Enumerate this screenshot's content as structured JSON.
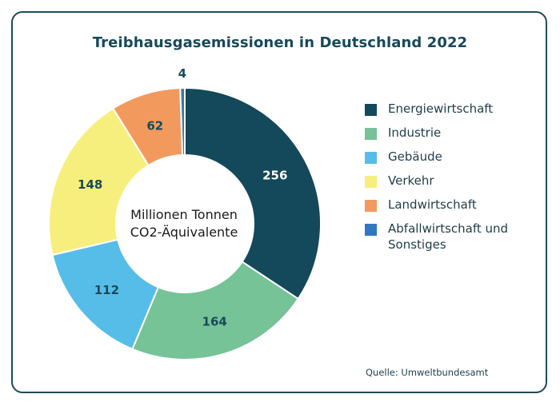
{
  "chart_data": {
    "type": "pie",
    "title": "Treibhausgasemissionen in Deutschland 2022",
    "center_label": [
      "Millionen Tonnen",
      "CO2-Äquivalente"
    ],
    "categories": [
      "Energiewirtschaft",
      "Industrie",
      "Gebäude",
      "Verkehr",
      "Landwirtschaft",
      "Abfallwirtschaft und Sonstiges"
    ],
    "values": [
      256,
      164,
      112,
      148,
      62,
      4
    ],
    "colors": [
      "#13495a",
      "#76c397",
      "#56bde8",
      "#f7ef7d",
      "#f29a5d",
      "#2f78c4"
    ],
    "label_colors": [
      "#ffffff",
      "#1a4a5a",
      "#1a4a5a",
      "#1a4a5a",
      "#1a4a5a",
      "#1a4a5a"
    ],
    "legend_position": "right",
    "source": "Quelle: Umweltbundesamt"
  }
}
